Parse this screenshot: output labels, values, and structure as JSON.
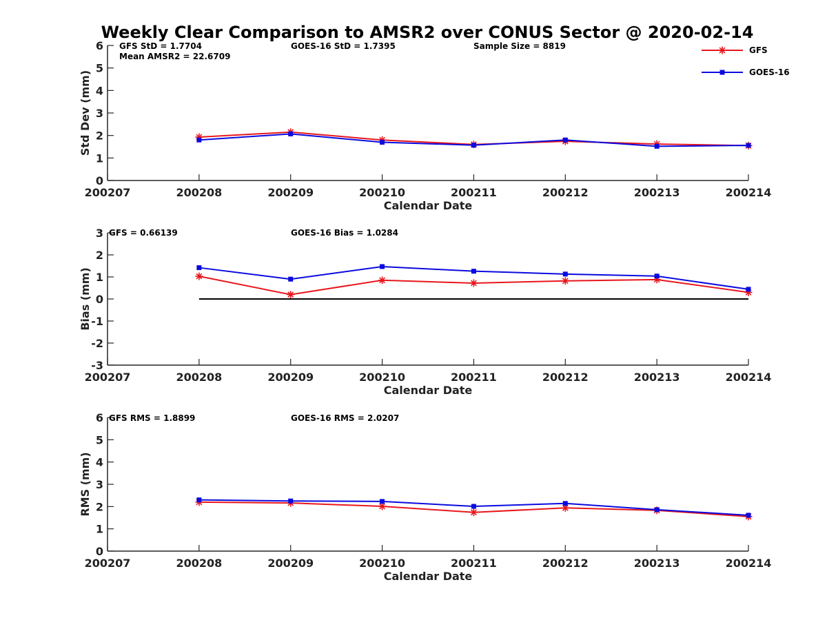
{
  "title": "Weekly Clear Comparison to AMSR2 over CONUS Sector @ 2020-02-14",
  "legend": {
    "placement": "top-right",
    "entries": [
      {
        "label": "GFS",
        "color": "#e8161c",
        "marker": "asterisk"
      },
      {
        "label": "GOES-16",
        "color": "#0a0adf",
        "marker": "square"
      }
    ]
  },
  "chart_data": [
    {
      "type": "line",
      "xlabel": "Calendar Date",
      "ylabel": "Std Dev (mm)",
      "x_ticks": [
        "200207",
        "200208",
        "200209",
        "200210",
        "200211",
        "200212",
        "200213",
        "200214"
      ],
      "ylim": [
        0,
        6
      ],
      "y_ticks": [
        "0",
        "1",
        "2",
        "3",
        "4",
        "5",
        "6"
      ],
      "annotations": [
        "GFS StD = 1.7704",
        "Mean AMSR2 = 22.6709",
        "GOES-16 StD = 1.7395",
        "Sample Size = 8819"
      ],
      "series": [
        {
          "name": "GFS",
          "color": "#e8161c",
          "marker": "asterisk",
          "x": [
            1,
            2,
            3,
            4,
            5,
            6,
            7
          ],
          "values": [
            1.93,
            2.15,
            1.8,
            1.6,
            1.74,
            1.62,
            1.55
          ]
        },
        {
          "name": "GOES-16",
          "color": "#0a0adf",
          "marker": "square",
          "x": [
            1,
            2,
            3,
            4,
            5,
            6,
            7
          ],
          "values": [
            1.8,
            2.07,
            1.7,
            1.57,
            1.8,
            1.52,
            1.56
          ]
        }
      ]
    },
    {
      "type": "line",
      "xlabel": "Calendar Date",
      "ylabel": "Bias (mm)",
      "x_ticks": [
        "200207",
        "200208",
        "200209",
        "200210",
        "200211",
        "200212",
        "200213",
        "200214"
      ],
      "ylim": [
        -3,
        3
      ],
      "y_ticks": [
        "-3",
        "-2",
        "-1",
        "0",
        "1",
        "2",
        "3"
      ],
      "zero_line": true,
      "annotations": [
        "GFS = 0.66139",
        "GOES-16 Bias  = 1.0284"
      ],
      "series": [
        {
          "name": "GFS",
          "color": "#e8161c",
          "marker": "asterisk",
          "x": [
            1,
            2,
            3,
            4,
            5,
            6,
            7
          ],
          "values": [
            1.03,
            0.2,
            0.85,
            0.72,
            0.82,
            0.88,
            0.3
          ]
        },
        {
          "name": "GOES-16",
          "color": "#0a0adf",
          "marker": "square",
          "x": [
            1,
            2,
            3,
            4,
            5,
            6,
            7
          ],
          "values": [
            1.42,
            0.9,
            1.47,
            1.26,
            1.13,
            1.04,
            0.44
          ]
        }
      ]
    },
    {
      "type": "line",
      "xlabel": "Calendar Date",
      "ylabel": "RMS (mm)",
      "x_ticks": [
        "200207",
        "200208",
        "200209",
        "200210",
        "200211",
        "200212",
        "200213",
        "200214"
      ],
      "ylim": [
        0,
        6
      ],
      "y_ticks": [
        "0",
        "1",
        "2",
        "3",
        "4",
        "5",
        "6"
      ],
      "annotations": [
        "GFS RMS = 1.8899",
        "GOES-16 RMS = 2.0207"
      ],
      "series": [
        {
          "name": "GFS",
          "color": "#e8161c",
          "marker": "asterisk",
          "x": [
            1,
            2,
            3,
            4,
            5,
            6,
            7
          ],
          "values": [
            2.2,
            2.16,
            2.01,
            1.74,
            1.94,
            1.83,
            1.55
          ]
        },
        {
          "name": "GOES-16",
          "color": "#0a0adf",
          "marker": "square",
          "x": [
            1,
            2,
            3,
            4,
            5,
            6,
            7
          ],
          "values": [
            2.3,
            2.25,
            2.23,
            2.01,
            2.14,
            1.86,
            1.61
          ]
        }
      ]
    }
  ]
}
